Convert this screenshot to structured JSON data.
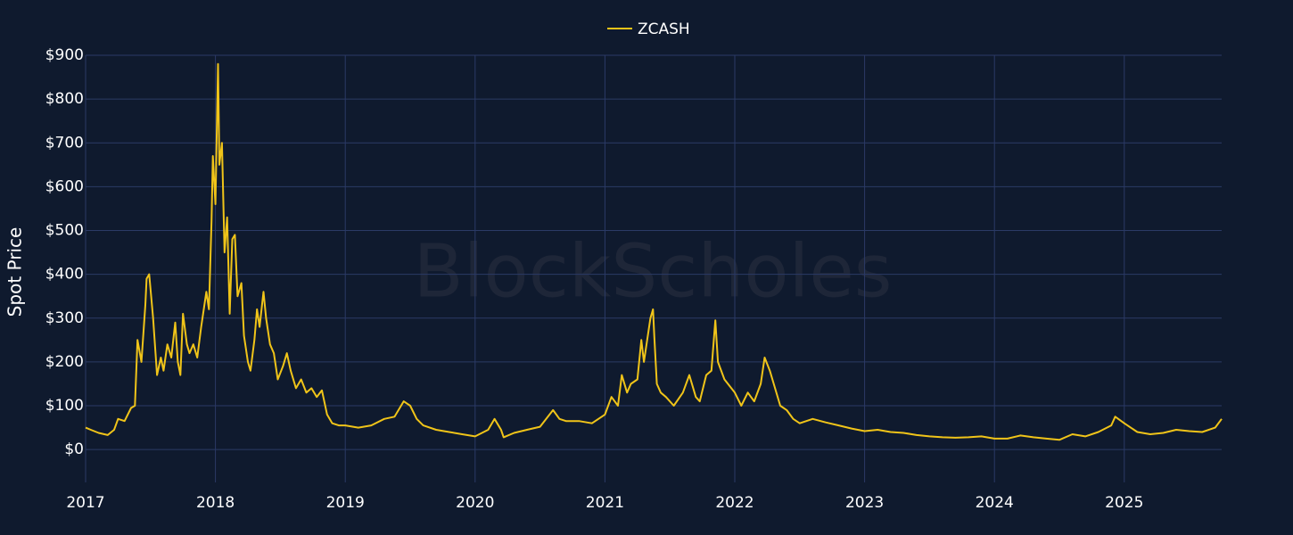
{
  "chart_data": {
    "type": "line",
    "watermark": "BlockScholes",
    "y_label": "Spot Price",
    "xlim": [
      2017,
      2025.75
    ],
    "xticks": [
      2017,
      2018,
      2019,
      2020,
      2021,
      2022,
      2023,
      2024,
      2025
    ],
    "ylim": [
      -75,
      900
    ],
    "yticks": [
      {
        "value": 0,
        "label": "$0"
      },
      {
        "value": 100,
        "label": "$100"
      },
      {
        "value": 200,
        "label": "$200"
      },
      {
        "value": 300,
        "label": "$300"
      },
      {
        "value": 400,
        "label": "$400"
      },
      {
        "value": 500,
        "label": "$500"
      },
      {
        "value": 600,
        "label": "$600"
      },
      {
        "value": 700,
        "label": "$700"
      },
      {
        "value": 800,
        "label": "$800"
      },
      {
        "value": 900,
        "label": "$900"
      }
    ],
    "grid": true,
    "legend": "top",
    "x": [
      2017.0,
      2017.04,
      2017.1,
      2017.17,
      2017.22,
      2017.25,
      2017.3,
      2017.35,
      2017.38,
      2017.4,
      2017.43,
      2017.46,
      2017.47,
      2017.49,
      2017.52,
      2017.55,
      2017.58,
      2017.6,
      2017.63,
      2017.66,
      2017.69,
      2017.71,
      2017.73,
      2017.75,
      2017.78,
      2017.8,
      2017.83,
      2017.86,
      2017.89,
      2017.93,
      2017.95,
      2017.97,
      2017.98,
      2018.0,
      2018.02,
      2018.03,
      2018.05,
      2018.07,
      2018.09,
      2018.11,
      2018.13,
      2018.15,
      2018.17,
      2018.2,
      2018.22,
      2018.25,
      2018.27,
      2018.3,
      2018.32,
      2018.34,
      2018.37,
      2018.39,
      2018.42,
      2018.45,
      2018.48,
      2018.52,
      2018.55,
      2018.58,
      2018.62,
      2018.66,
      2018.7,
      2018.74,
      2018.78,
      2018.82,
      2018.86,
      2018.9,
      2018.95,
      2019.0,
      2019.1,
      2019.2,
      2019.3,
      2019.38,
      2019.45,
      2019.5,
      2019.55,
      2019.6,
      2019.7,
      2019.8,
      2019.9,
      2020.0,
      2020.1,
      2020.15,
      2020.2,
      2020.22,
      2020.3,
      2020.4,
      2020.5,
      2020.6,
      2020.65,
      2020.7,
      2020.8,
      2020.9,
      2021.0,
      2021.05,
      2021.1,
      2021.13,
      2021.17,
      2021.2,
      2021.25,
      2021.28,
      2021.3,
      2021.35,
      2021.37,
      2021.38,
      2021.4,
      2021.43,
      2021.47,
      2021.53,
      2021.6,
      2021.65,
      2021.7,
      2021.73,
      2021.78,
      2021.82,
      2021.85,
      2021.87,
      2021.92,
      2022.0,
      2022.05,
      2022.1,
      2022.15,
      2022.2,
      2022.23,
      2022.27,
      2022.3,
      2022.35,
      2022.4,
      2022.45,
      2022.5,
      2022.6,
      2022.7,
      2022.8,
      2022.9,
      2023.0,
      2023.1,
      2023.2,
      2023.3,
      2023.4,
      2023.5,
      2023.6,
      2023.7,
      2023.8,
      2023.9,
      2024.0,
      2024.1,
      2024.2,
      2024.3,
      2024.4,
      2024.5,
      2024.6,
      2024.7,
      2024.8,
      2024.9,
      2024.93,
      2025.0,
      2025.1,
      2025.2,
      2025.3,
      2025.4,
      2025.5,
      2025.6,
      2025.7,
      2025.75
    ],
    "series": [
      {
        "name": "ZCASH",
        "color": "#f0c419",
        "values": [
          50,
          45,
          38,
          33,
          45,
          70,
          65,
          95,
          100,
          250,
          200,
          330,
          390,
          400,
          300,
          170,
          210,
          180,
          240,
          210,
          290,
          200,
          170,
          310,
          240,
          220,
          240,
          210,
          280,
          360,
          320,
          520,
          670,
          560,
          880,
          650,
          700,
          450,
          530,
          310,
          480,
          490,
          350,
          380,
          260,
          200,
          180,
          250,
          320,
          280,
          360,
          300,
          240,
          220,
          160,
          190,
          220,
          180,
          140,
          160,
          130,
          140,
          120,
          135,
          80,
          60,
          55,
          55,
          50,
          55,
          70,
          75,
          110,
          100,
          70,
          55,
          45,
          40,
          35,
          30,
          45,
          70,
          45,
          28,
          38,
          45,
          52,
          90,
          70,
          65,
          65,
          60,
          80,
          120,
          100,
          170,
          130,
          150,
          160,
          250,
          200,
          300,
          320,
          260,
          150,
          130,
          120,
          100,
          130,
          170,
          120,
          110,
          170,
          180,
          295,
          200,
          160,
          130,
          100,
          130,
          110,
          150,
          210,
          180,
          150,
          100,
          90,
          70,
          60,
          70,
          62,
          55,
          48,
          42,
          45,
          40,
          38,
          33,
          30,
          28,
          27,
          28,
          30,
          25,
          25,
          32,
          28,
          25,
          22,
          35,
          30,
          40,
          55,
          75,
          60,
          40,
          35,
          38,
          45,
          42,
          40,
          50,
          70
        ]
      }
    ]
  }
}
